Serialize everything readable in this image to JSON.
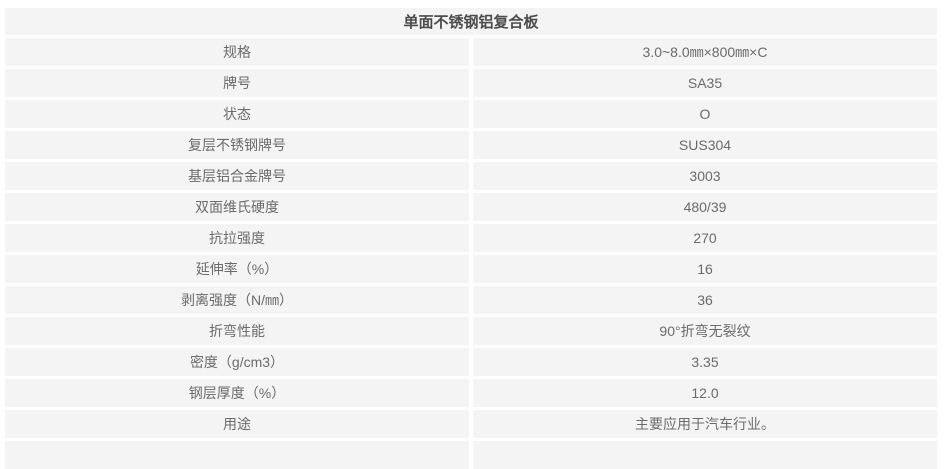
{
  "table": {
    "title": "单面不锈钢铝复合板",
    "rows": [
      {
        "label": "规格",
        "value": "3.0~8.0㎜×800㎜×C"
      },
      {
        "label": "牌号",
        "value": "SA35"
      },
      {
        "label": "状态",
        "value": "O"
      },
      {
        "label": "复层不锈钢牌号",
        "value": "SUS304"
      },
      {
        "label": "基层铝合金牌号",
        "value": "3003"
      },
      {
        "label": "双面维氏硬度",
        "value": "480/39"
      },
      {
        "label": "抗拉强度",
        "value": "270"
      },
      {
        "label": "延伸率（%）",
        "value": "16"
      },
      {
        "label": "剥离强度（N/㎜）",
        "value": "36"
      },
      {
        "label": "折弯性能",
        "value": "90°折弯无裂纹"
      },
      {
        "label": "密度（g/cm3）",
        "value": "3.35"
      },
      {
        "label": "钢层厚度（%）",
        "value": "12.0"
      },
      {
        "label": "用途",
        "value": "主要应用于汽车行业。"
      }
    ],
    "colors": {
      "row_bg": "#f4f4f4",
      "page_bg": "#ffffff",
      "text": "#6b6b6b",
      "title_text": "#4c4c4c"
    }
  }
}
